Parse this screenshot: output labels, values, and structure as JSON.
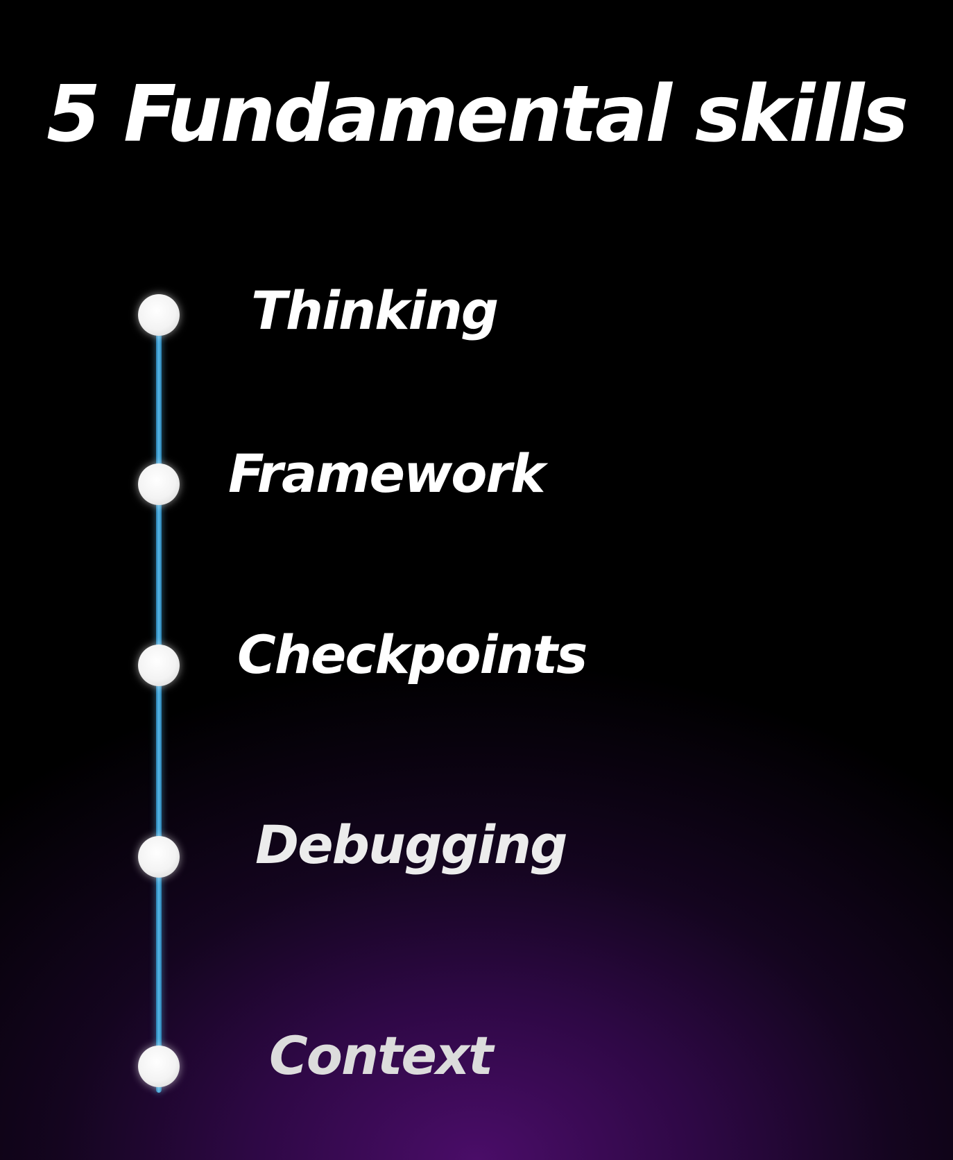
{
  "title": "5 Fundamental skills",
  "colors": {
    "background_top": "#000000",
    "background_glow": "#4a0d68",
    "line": "#56b9ea",
    "node": "#ffffff",
    "text": "#ffffff"
  },
  "skills": [
    {
      "label": "Thinking"
    },
    {
      "label": "Framework"
    },
    {
      "label": "Checkpoints"
    },
    {
      "label": "Debugging"
    },
    {
      "label": "Context"
    }
  ]
}
